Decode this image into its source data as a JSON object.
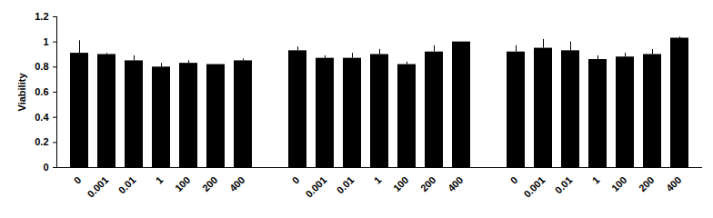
{
  "chart_data": {
    "type": "bar",
    "y_label": "Viability",
    "categories": [
      "0",
      "0.001",
      "0.01",
      "1",
      "100",
      "200",
      "400",
      null,
      "0",
      "0.001",
      "0.01",
      "1",
      "100",
      "200",
      "400",
      null,
      "0",
      "0.001",
      "0.01",
      "1",
      "100",
      "200",
      "400"
    ],
    "values": [
      0.91,
      0.9,
      0.85,
      0.8,
      0.83,
      0.82,
      0.85,
      null,
      0.93,
      0.87,
      0.87,
      0.9,
      0.82,
      0.92,
      1.0,
      null,
      0.92,
      0.95,
      0.93,
      0.86,
      0.88,
      0.9,
      1.03
    ],
    "errors": [
      0.1,
      0.01,
      0.04,
      0.03,
      0.02,
      0.0,
      0.015,
      null,
      0.03,
      0.02,
      0.04,
      0.04,
      0.02,
      0.05,
      0.0,
      null,
      0.05,
      0.07,
      0.07,
      0.03,
      0.03,
      0.04,
      0.01
    ],
    "color": "#000000",
    "ylim": [
      0,
      1.2
    ],
    "yticks": [
      0,
      0.2,
      0.4,
      0.6,
      0.8,
      1,
      1.2
    ],
    "grid": false
  }
}
